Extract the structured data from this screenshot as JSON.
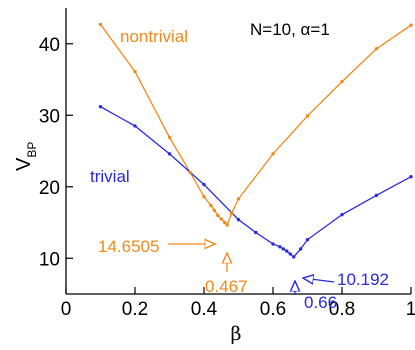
{
  "chart_data": {
    "type": "line",
    "xlabel": "β",
    "ylabel_main": "V",
    "ylabel_sub": "BP",
    "xlim": [
      0,
      1
    ],
    "ylim": [
      5,
      45
    ],
    "x_ticks": [
      0,
      0.2,
      0.4,
      0.6,
      0.8,
      1
    ],
    "x_tick_labels": [
      "0",
      "0.2",
      "0.4",
      "0.6",
      "0.8",
      "1"
    ],
    "y_ticks": [
      10,
      20,
      30,
      40
    ],
    "y_tick_labels": [
      "10",
      "20",
      "30",
      "40"
    ],
    "params_label": "N=10, α=1",
    "series": [
      {
        "name": "nontrivial",
        "color": "#f08a1c",
        "x": [
          0.1,
          0.2,
          0.3,
          0.36,
          0.4,
          0.42,
          0.43,
          0.44,
          0.45,
          0.46,
          0.467,
          0.48,
          0.5,
          0.6,
          0.7,
          0.8,
          0.9,
          1.0
        ],
        "y": [
          42.7,
          36.1,
          26.9,
          22.0,
          18.6,
          17.4,
          16.7,
          16.0,
          15.5,
          15.0,
          14.65,
          16.3,
          18.3,
          24.6,
          29.9,
          34.7,
          39.3,
          42.6
        ]
      },
      {
        "name": "trivial",
        "color": "#2a2ae0",
        "x": [
          0.1,
          0.2,
          0.3,
          0.4,
          0.5,
          0.55,
          0.6,
          0.62,
          0.63,
          0.64,
          0.65,
          0.66,
          0.68,
          0.7,
          0.8,
          0.9,
          1.0
        ],
        "y": [
          31.2,
          28.5,
          24.6,
          20.3,
          15.4,
          13.6,
          12.0,
          11.6,
          11.3,
          11.0,
          10.6,
          10.19,
          11.3,
          12.6,
          16.1,
          18.8,
          21.4
        ]
      }
    ],
    "annotations": {
      "nontrivial_min_value": "14.6505",
      "nontrivial_min_beta": "0.467",
      "trivial_min_value": "10.192",
      "trivial_min_beta": "0.66"
    }
  }
}
